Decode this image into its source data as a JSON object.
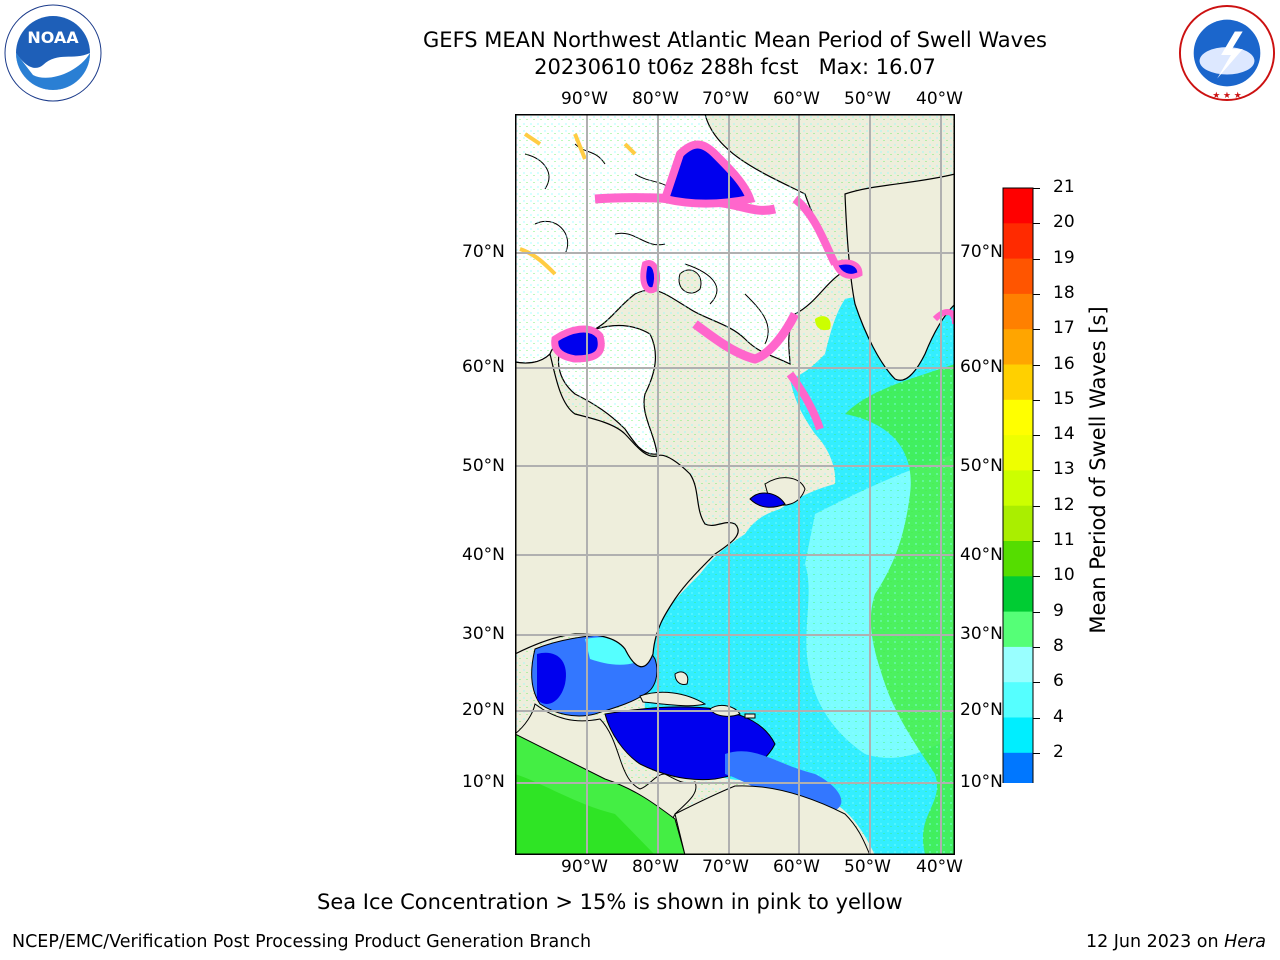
{
  "header": {
    "title_line1": "GEFS MEAN Northwest Atlantic Mean Period of Swell Waves",
    "run": "20230610 t06z 288h fcst",
    "max_label": "Max: 16.07"
  },
  "logos": {
    "noaa_text": "NOAA",
    "noaa_ring_text": "NATIONAL OCEANIC AND ATMOSPHERIC ADMINISTRATION · U.S. DEPARTMENT OF COMMERCE",
    "nws_ring_text": "NATIONAL WEATHER SERVICE"
  },
  "axes": {
    "lon_labels": [
      "90°W",
      "80°W",
      "70°W",
      "60°W",
      "50°W",
      "40°W"
    ],
    "lat_labels": [
      "70°N",
      "60°N",
      "50°N",
      "40°N",
      "30°N",
      "20°N",
      "10°N"
    ]
  },
  "colorbar": {
    "title": "Mean Period of Swell Waves [s]",
    "ticks": [
      "21",
      "20",
      "19",
      "18",
      "17",
      "16",
      "15",
      "14",
      "13",
      "12",
      "11",
      "10",
      "9",
      "8",
      "6",
      "4",
      "2"
    ],
    "colors": [
      "#ff0000",
      "#ff2a00",
      "#ff5500",
      "#ff8000",
      "#ffa500",
      "#ffd000",
      "#ffff00",
      "#eeff00",
      "#ccff00",
      "#aaee00",
      "#55dd00",
      "#00cc33",
      "#55ff77",
      "#99ffff",
      "#55ffff",
      "#00eeff",
      "#0077ff"
    ],
    "extend_color": "#0000ff"
  },
  "note": "Sea Ice Concentration > 15% is shown in pink to yellow",
  "footer": {
    "left": "NCEP/EMC/Verification Post Processing Product Generation Branch",
    "date": "12 Jun 2023 on ",
    "host": "Hera"
  },
  "colors": {
    "land": "#eeeedc",
    "grid": "#b0b0b0",
    "ice_pink": "#ff66cc",
    "ice_yellow": "#ffcc44",
    "deep_blue": "#0000ee",
    "mid_blue": "#3377ff",
    "cyan": "#33eeff",
    "light_cyan": "#88ffff",
    "green": "#44ee44"
  }
}
